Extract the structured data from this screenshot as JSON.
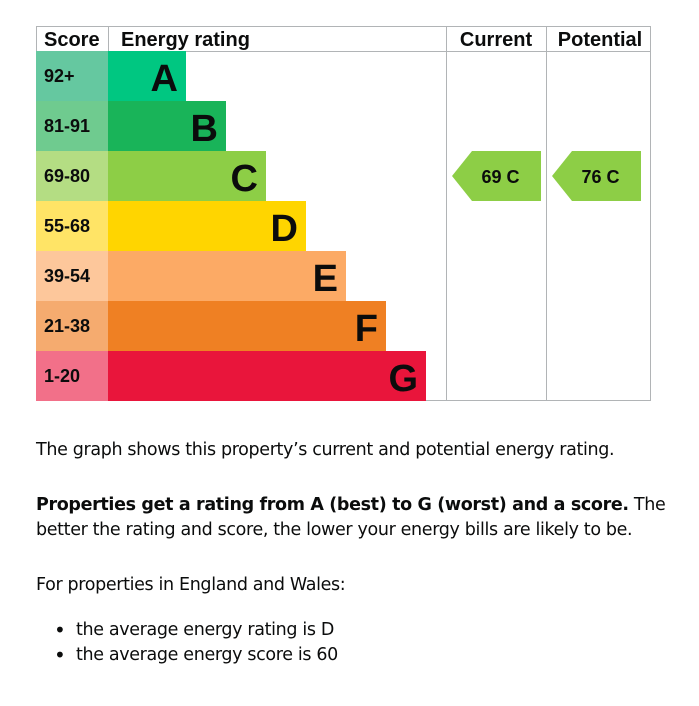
{
  "chart_data": {
    "type": "bar",
    "headers": {
      "score": "Score",
      "rating": "Energy rating",
      "current": "Current",
      "potential": "Potential"
    },
    "bands": [
      {
        "letter": "A",
        "range": "92+",
        "color": "#00c781",
        "score_color": "#65c8a0"
      },
      {
        "letter": "B",
        "range": "81-91",
        "color": "#19b459",
        "score_color": "#6fcb8f"
      },
      {
        "letter": "C",
        "range": "69-80",
        "color": "#8dce46",
        "score_color": "#b4dd83"
      },
      {
        "letter": "D",
        "range": "55-68",
        "color": "#ffd500",
        "score_color": "#ffe466"
      },
      {
        "letter": "E",
        "range": "39-54",
        "color": "#fcaa65",
        "score_color": "#fdc79b"
      },
      {
        "letter": "F",
        "range": "21-38",
        "color": "#ef8023",
        "score_color": "#f5ab6f"
      },
      {
        "letter": "G",
        "range": "1-20",
        "color": "#e9153b",
        "score_color": "#f27089"
      }
    ],
    "current": {
      "score": 69,
      "band": "C",
      "label": "69  C",
      "color": "#8dce46"
    },
    "potential": {
      "score": 76,
      "band": "C",
      "label": "76  C",
      "color": "#8dce46"
    }
  },
  "text": {
    "intro": "The graph shows this property’s current and potential energy rating.",
    "rating_bold": "Properties get a rating from A (best) to G (worst) and a score.",
    "rating_rest": " The better the rating and score, the lower your energy bills are likely to be.",
    "region": "For properties in England and Wales:",
    "bullets": [
      "the average energy rating is D",
      "the average energy score is 60"
    ]
  }
}
